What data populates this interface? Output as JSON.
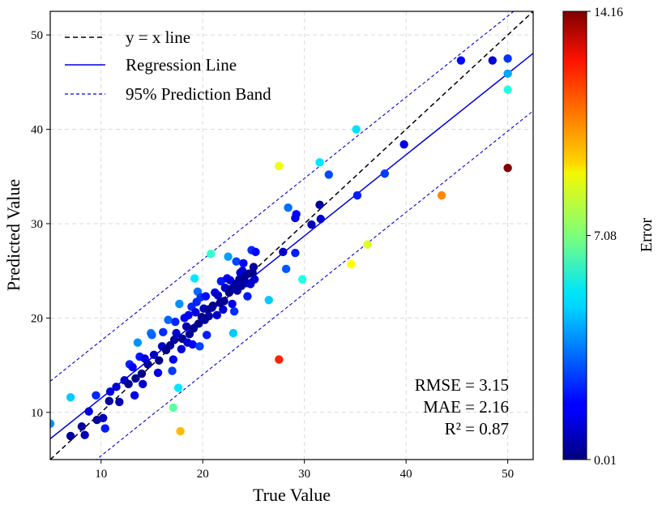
{
  "chart_data": {
    "type": "scatter",
    "title": "",
    "xlabel": "True Value",
    "ylabel": "Predicted Value",
    "xlim": [
      5,
      52.5
    ],
    "ylim": [
      5,
      52.5
    ],
    "xticks": [
      10,
      20,
      30,
      40,
      50
    ],
    "yticks": [
      10,
      20,
      30,
      40,
      50
    ],
    "grid": true,
    "legend": {
      "placement": "top-left",
      "entries": [
        {
          "label": "y = x line",
          "style": "dashed",
          "color": "#000000"
        },
        {
          "label": "Regression Line",
          "style": "solid",
          "color": "#0000dd"
        },
        {
          "label": "95% Prediction Band",
          "style": "dashed",
          "color": "#0000dd"
        }
      ]
    },
    "regression": {
      "slope": 0.86,
      "intercept": 2.9,
      "band_offset": 6.1
    },
    "metrics": [
      "RMSE = 3.15",
      "MAE = 2.16",
      "R² = 0.87"
    ],
    "colorbar": {
      "label": "Error",
      "min": 0.01,
      "max": 14.16,
      "ticks": [
        "0.01",
        "7.08",
        "14.16"
      ],
      "colormap": "jet"
    },
    "points": [
      [
        5.0,
        8.8
      ],
      [
        7.0,
        7.5
      ],
      [
        7.0,
        11.6
      ],
      [
        8.1,
        8.5
      ],
      [
        8.4,
        7.6
      ],
      [
        8.8,
        10.1
      ],
      [
        9.5,
        11.8
      ],
      [
        9.6,
        9.2
      ],
      [
        10.2,
        9.4
      ],
      [
        10.4,
        8.3
      ],
      [
        10.8,
        11.2
      ],
      [
        10.9,
        12.2
      ],
      [
        11.5,
        12.7
      ],
      [
        11.8,
        11.1
      ],
      [
        12.3,
        13.4
      ],
      [
        12.7,
        13.0
      ],
      [
        12.8,
        15.1
      ],
      [
        13.1,
        14.8
      ],
      [
        13.4,
        13.6
      ],
      [
        13.3,
        11.8
      ],
      [
        13.6,
        17.4
      ],
      [
        13.8,
        15.9
      ],
      [
        14.0,
        14.1
      ],
      [
        14.1,
        13.0
      ],
      [
        14.3,
        15.7
      ],
      [
        14.6,
        15.1
      ],
      [
        14.9,
        18.4
      ],
      [
        15.0,
        18.2
      ],
      [
        15.2,
        16.1
      ],
      [
        15.6,
        14.2
      ],
      [
        15.7,
        15.5
      ],
      [
        16.0,
        17.0
      ],
      [
        16.1,
        18.5
      ],
      [
        16.4,
        16.6
      ],
      [
        16.6,
        19.8
      ],
      [
        16.8,
        17.1
      ],
      [
        17.0,
        14.4
      ],
      [
        17.1,
        15.6
      ],
      [
        17.1,
        10.5
      ],
      [
        17.2,
        17.7
      ],
      [
        17.3,
        19.6
      ],
      [
        17.4,
        18.4
      ],
      [
        17.6,
        12.6
      ],
      [
        17.7,
        21.5
      ],
      [
        17.8,
        8.0
      ],
      [
        17.9,
        16.7
      ],
      [
        18.0,
        17.8
      ],
      [
        18.2,
        20.0
      ],
      [
        18.4,
        19.1
      ],
      [
        18.5,
        17.4
      ],
      [
        18.6,
        20.3
      ],
      [
        18.7,
        18.3
      ],
      [
        18.9,
        21.2
      ],
      [
        19.0,
        17.2
      ],
      [
        19.1,
        18.9
      ],
      [
        19.2,
        24.2
      ],
      [
        19.3,
        20.6
      ],
      [
        19.4,
        21.7
      ],
      [
        19.5,
        22.8
      ],
      [
        19.6,
        19.4
      ],
      [
        19.7,
        17.0
      ],
      [
        19.8,
        22.2
      ],
      [
        19.9,
        20.1
      ],
      [
        20.1,
        21.0
      ],
      [
        20.2,
        19.8
      ],
      [
        20.3,
        22.3
      ],
      [
        20.4,
        18.2
      ],
      [
        20.5,
        20.9
      ],
      [
        20.6,
        20.2
      ],
      [
        20.8,
        26.8
      ],
      [
        20.9,
        21.1
      ],
      [
        21.0,
        21.3
      ],
      [
        21.2,
        22.7
      ],
      [
        21.4,
        20.3
      ],
      [
        21.5,
        22.4
      ],
      [
        21.7,
        21.6
      ],
      [
        21.8,
        23.9
      ],
      [
        22.0,
        20.9
      ],
      [
        22.1,
        21.8
      ],
      [
        22.2,
        23.2
      ],
      [
        22.4,
        24.2
      ],
      [
        22.5,
        26.5
      ],
      [
        22.6,
        22.7
      ],
      [
        22.7,
        24.0
      ],
      [
        22.8,
        23.1
      ],
      [
        22.9,
        21.5
      ],
      [
        23.0,
        18.4
      ],
      [
        23.1,
        20.7
      ],
      [
        23.2,
        23.6
      ],
      [
        23.3,
        26.0
      ],
      [
        23.4,
        22.9
      ],
      [
        23.6,
        24.1
      ],
      [
        23.7,
        24.8
      ],
      [
        23.8,
        23.4
      ],
      [
        23.9,
        25.0
      ],
      [
        24.0,
        25.8
      ],
      [
        24.1,
        24.3
      ],
      [
        24.3,
        23.7
      ],
      [
        24.4,
        22.3
      ],
      [
        24.5,
        24.7
      ],
      [
        24.7,
        23.6
      ],
      [
        24.8,
        27.2
      ],
      [
        24.9,
        24.8
      ],
      [
        25.0,
        25.4
      ],
      [
        25.1,
        24.1
      ],
      [
        25.2,
        27.0
      ],
      [
        26.5,
        21.9
      ],
      [
        27.5,
        36.1
      ],
      [
        27.5,
        15.6
      ],
      [
        27.9,
        27.0
      ],
      [
        28.2,
        25.2
      ],
      [
        28.4,
        31.7
      ],
      [
        29.1,
        26.9
      ],
      [
        29.1,
        30.6
      ],
      [
        29.2,
        31.0
      ],
      [
        29.8,
        24.1
      ],
      [
        30.7,
        29.9
      ],
      [
        31.5,
        36.5
      ],
      [
        31.5,
        32.0
      ],
      [
        31.6,
        30.5
      ],
      [
        32.4,
        35.2
      ],
      [
        34.6,
        25.7
      ],
      [
        35.1,
        40.0
      ],
      [
        35.2,
        33.0
      ],
      [
        36.2,
        27.8
      ],
      [
        37.9,
        35.3
      ],
      [
        39.8,
        38.4
      ],
      [
        43.5,
        33.0
      ],
      [
        45.4,
        47.3
      ],
      [
        48.5,
        47.3
      ],
      [
        50.0,
        47.5
      ],
      [
        50.0,
        45.9
      ],
      [
        50.0,
        44.2
      ],
      [
        50.0,
        35.9
      ]
    ]
  }
}
